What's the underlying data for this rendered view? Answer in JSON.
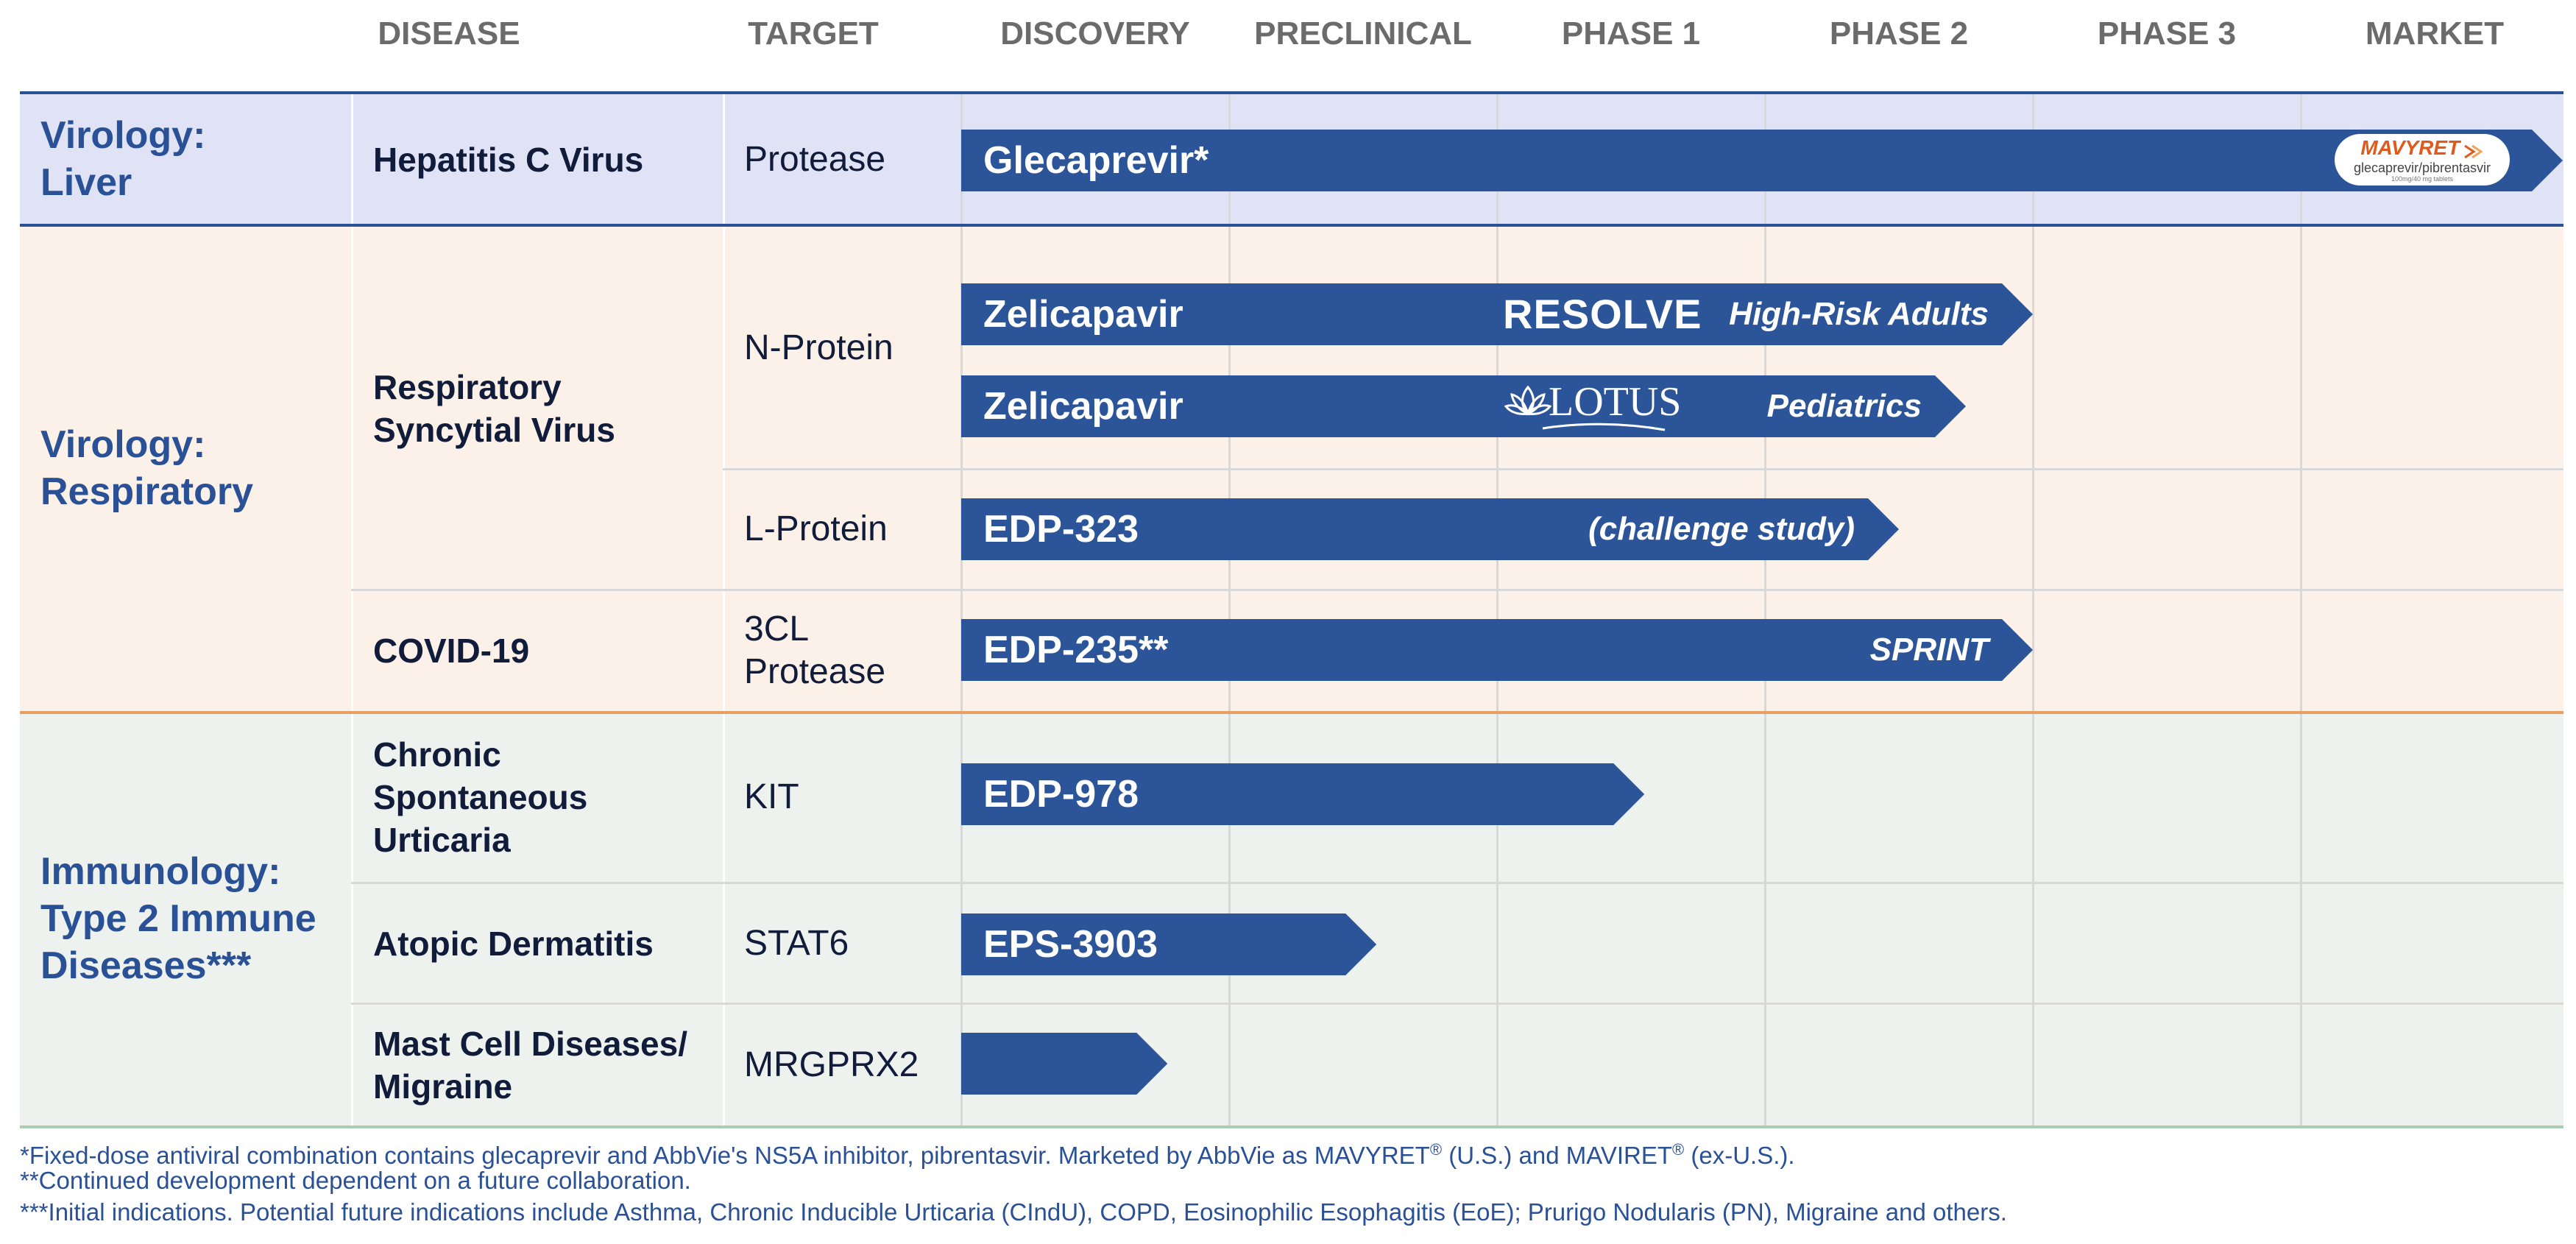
{
  "colors": {
    "bar": "#2c5599",
    "header_text": "#6b6b6b",
    "area_text": "#2a5196",
    "liver_band": "#dfe3f5",
    "respiratory_band": "#fbf1e8",
    "immunology_band": "#eef2ef",
    "liver_rule": "#2a5196",
    "respiratory_rule": "#e8a061",
    "immunology_rule": "#a9cdb2",
    "mavyret_orange": "#e05a1c"
  },
  "headers": {
    "disease": "DISEASE",
    "target": "TARGET",
    "stages": [
      "DISCOVERY",
      "PRECLINICAL",
      "PHASE 1",
      "PHASE 2",
      "PHASE 3",
      "MARKET"
    ]
  },
  "areas": [
    {
      "key": "liver",
      "label": "Virology:\nLiver"
    },
    {
      "key": "respiratory",
      "label": "Virology:\nRespiratory"
    },
    {
      "key": "immunology",
      "label": "Immunology:\nType 2 Immune\nDiseases***"
    }
  ],
  "diseases": [
    "Hepatitis C Virus",
    "Respiratory\nSyncytial Virus",
    "COVID-19",
    "Chronic\nSpontaneous\nUrticaria",
    "Atopic Dermatitis",
    "Mast Cell Diseases/\nMigraine"
  ],
  "targets": [
    "Protease",
    "N-Protein",
    "L-Protein",
    "3CL\nProtease",
    "KIT",
    "STAT6",
    "MRGPRX2"
  ],
  "logos": {
    "mavyret_brand": "MAVYRET",
    "mavyret_generic": "glecaprevir/pibrentasvir",
    "mavyret_dose": "100mg/40 mg tablets",
    "resolve": "RESOLVE",
    "lotus": "LOTUS"
  },
  "chart_data": {
    "type": "bar",
    "orientation": "horizontal",
    "x_stages": [
      "DISCOVERY",
      "PRECLINICAL",
      "PHASE 1",
      "PHASE 2",
      "PHASE 3",
      "MARKET"
    ],
    "x_note": "bar end measured in stage columns from start of DISCOVERY (6 = full MARKET)",
    "programs": [
      {
        "name": "Glecaprevir*",
        "disease": "Hepatitis C Virus",
        "target": "Protease",
        "end_stage": 6.0,
        "note": "",
        "logo": "mavyret"
      },
      {
        "name": "Zelicapavir",
        "disease": "Respiratory Syncytial Virus",
        "target": "N-Protein",
        "end_stage": 4.0,
        "note": "High-Risk Adults",
        "logo": "resolve"
      },
      {
        "name": "Zelicapavir",
        "disease": "Respiratory Syncytial Virus",
        "target": "N-Protein",
        "end_stage": 3.75,
        "note": "Pediatrics",
        "logo": "lotus"
      },
      {
        "name": "EDP-323",
        "disease": "Respiratory Syncytial Virus",
        "target": "L-Protein",
        "end_stage": 3.5,
        "note": "(challenge study)",
        "logo": ""
      },
      {
        "name": "EDP-235**",
        "disease": "COVID-19",
        "target": "3CL Protease",
        "end_stage": 4.0,
        "note": "SPRINT",
        "logo": ""
      },
      {
        "name": "EDP-978",
        "disease": "Chronic Spontaneous Urticaria",
        "target": "KIT",
        "end_stage": 2.55,
        "note": "",
        "logo": ""
      },
      {
        "name": "EPS-3903",
        "disease": "Atopic Dermatitis",
        "target": "STAT6",
        "end_stage": 1.55,
        "note": "",
        "logo": ""
      },
      {
        "name": "",
        "disease": "Mast Cell Diseases/Migraine",
        "target": "MRGPRX2",
        "end_stage": 0.77,
        "note": "",
        "logo": ""
      }
    ]
  },
  "footnotes": {
    "f1_a": "*Fixed-dose antiviral combination contains glecaprevir and AbbVie's NS5A inhibitor, pibrentasvir. Marketed by AbbVie as MAVYRET",
    "f1_b": " (U.S.) and MAVIRET",
    "f1_c": " (ex-U.S.).",
    "reg": "®",
    "f2": "**Continued development dependent on a future collaboration.",
    "f3": "***Initial indications. Potential future indications include Asthma, Chronic Inducible Urticaria (CIndU), COPD, Eosinophilic Esophagitis (EoE); Prurigo Nodularis (PN), Migraine and others."
  }
}
